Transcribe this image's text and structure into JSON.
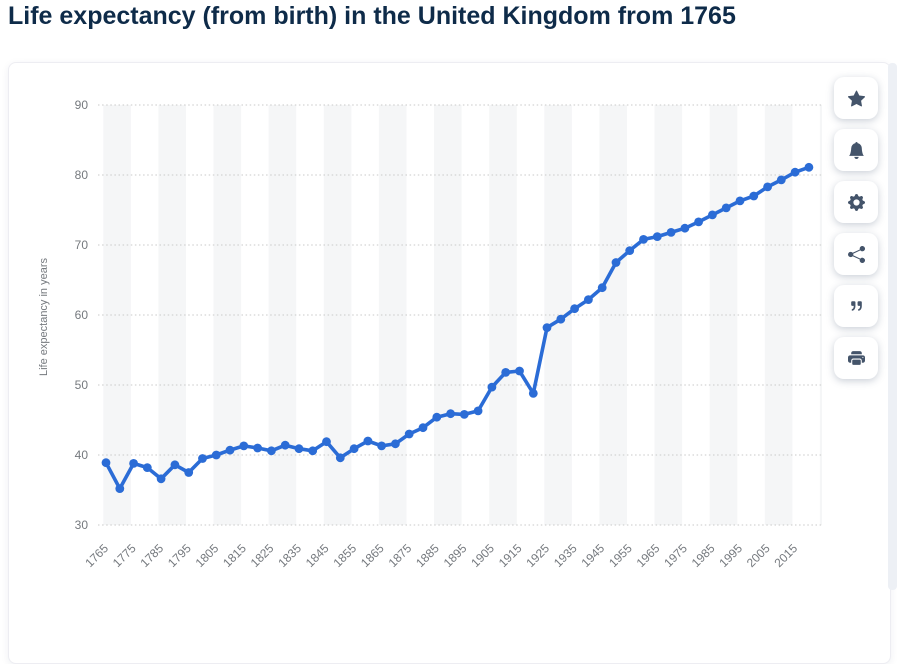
{
  "page": {
    "title": "Life expectancy (from birth) in the United Kingdom from 1765"
  },
  "colors": {
    "accent_line": "#2b6cd6",
    "title_text": "#0e2b49",
    "axis_text": "#75797e",
    "stripe": "#f5f6f7",
    "gridline": "#c9c9c9",
    "icon": "#44546a",
    "card_bg": "#ffffff"
  },
  "toolbar": {
    "buttons": [
      {
        "name": "favorite",
        "icon": "star-icon",
        "label": "Add to favorites"
      },
      {
        "name": "alert",
        "icon": "bell-icon",
        "label": "Get notified"
      },
      {
        "name": "settings",
        "icon": "gear-icon",
        "label": "Settings"
      },
      {
        "name": "share",
        "icon": "share-icon",
        "label": "Share"
      },
      {
        "name": "cite",
        "icon": "quote-icon",
        "label": "Citation"
      },
      {
        "name": "print",
        "icon": "print-icon",
        "label": "Print"
      }
    ]
  },
  "chart_data": {
    "type": "line",
    "title": "Life expectancy (from birth) in the United Kingdom from 1765",
    "xlabel": "",
    "ylabel": "Life expectancy in years",
    "ylim": [
      30,
      90
    ],
    "yticks": [
      30,
      40,
      50,
      60,
      70,
      80,
      90
    ],
    "xtick_labels": [
      "1765",
      "1775",
      "1785",
      "1795",
      "1805",
      "1815",
      "1825",
      "1835",
      "1845",
      "1855",
      "1865",
      "1875",
      "1885",
      "1895",
      "1905",
      "1915",
      "1925",
      "1935",
      "1945",
      "1955",
      "1965",
      "1975",
      "1985",
      "1995",
      "2005",
      "2015"
    ],
    "grid": "horizontal-dotted",
    "legend": false,
    "color": "#2b6cd6",
    "x": [
      1765,
      1770,
      1775,
      1780,
      1785,
      1790,
      1795,
      1800,
      1805,
      1810,
      1815,
      1820,
      1825,
      1830,
      1835,
      1840,
      1845,
      1850,
      1855,
      1860,
      1865,
      1870,
      1875,
      1880,
      1885,
      1890,
      1895,
      1900,
      1905,
      1910,
      1915,
      1920,
      1925,
      1930,
      1935,
      1940,
      1945,
      1950,
      1955,
      1960,
      1965,
      1970,
      1975,
      1980,
      1985,
      1990,
      1995,
      2000,
      2005,
      2010,
      2015,
      2020
    ],
    "values": [
      38.9,
      35.2,
      38.8,
      38.2,
      36.6,
      38.6,
      37.5,
      39.5,
      40.0,
      40.7,
      41.3,
      41.0,
      40.6,
      41.4,
      40.9,
      40.6,
      41.9,
      39.6,
      40.9,
      42.0,
      41.3,
      41.6,
      43.0,
      43.9,
      45.4,
      45.9,
      45.8,
      46.3,
      49.7,
      51.8,
      52.0,
      48.8,
      58.2,
      59.4,
      60.9,
      62.2,
      63.9,
      67.5,
      69.2,
      70.8,
      71.2,
      71.8,
      72.4,
      73.3,
      74.3,
      75.3,
      76.3,
      77.0,
      78.3,
      79.3,
      80.4,
      81.1
    ]
  }
}
